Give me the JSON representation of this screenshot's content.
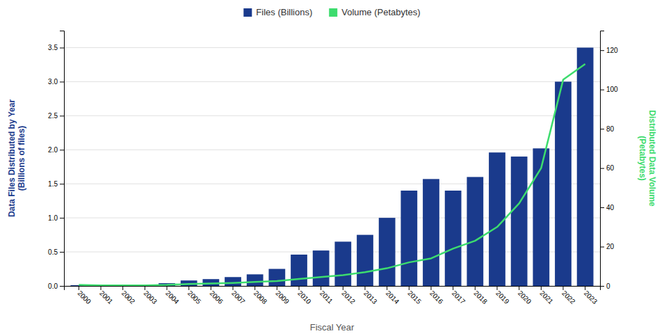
{
  "chart_data": {
    "type": "bar",
    "categories": [
      "2000",
      "2001",
      "2002",
      "2003",
      "2004",
      "2005",
      "2006",
      "2007",
      "2008",
      "2009",
      "2010",
      "2011",
      "2012",
      "2013",
      "2014",
      "2015",
      "2016",
      "2017",
      "2018",
      "2019",
      "2020",
      "2021",
      "2022",
      "2023"
    ],
    "xlabel": "Fiscal Year",
    "ylabel": "Data Files Distributed by Year\n(Billions of files)",
    "y2label": "Distributed Data Volume\n(Petabytes)",
    "series": [
      {
        "name": "Files (Billions)",
        "type": "bar",
        "color": "#1a3a8c",
        "values": [
          0.01,
          0.01,
          0.01,
          0.02,
          0.04,
          0.08,
          0.1,
          0.13,
          0.17,
          0.25,
          0.46,
          0.52,
          0.65,
          0.75,
          1.0,
          1.4,
          1.57,
          1.4,
          1.6,
          1.96,
          1.9,
          2.02,
          3.0,
          3.5
        ]
      },
      {
        "name": "Volume (Petabytes)",
        "type": "line",
        "color": "#3ddc6e",
        "axis": "y2",
        "values": [
          0.5,
          0.3,
          0.3,
          0.3,
          0.5,
          1.0,
          1.2,
          1.5,
          2.0,
          2.5,
          3.5,
          4.5,
          5.5,
          7.0,
          9.0,
          12.0,
          14.0,
          19.0,
          23.0,
          30.0,
          42.0,
          60.0,
          105.0,
          113.0
        ]
      }
    ],
    "ylim": [
      0,
      3.75
    ],
    "yticks": [
      {
        "value": 0,
        "label": "0.0"
      },
      0.5,
      {
        "value": 1.0,
        "label": "1.0"
      },
      1.5,
      {
        "value": 2.0,
        "label": "2.0"
      },
      2.5,
      {
        "value": 3.0,
        "label": "3.0"
      },
      3.5
    ],
    "y2lim": [
      0,
      130
    ],
    "y2ticks": [
      0,
      20,
      40,
      60,
      80,
      100,
      120
    ],
    "grid": true,
    "legend": "top"
  }
}
